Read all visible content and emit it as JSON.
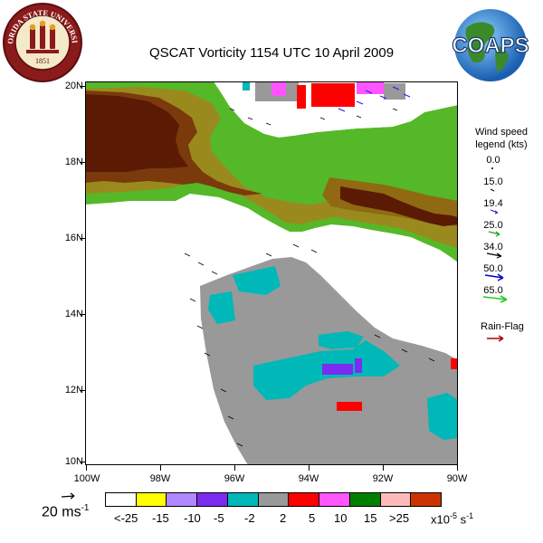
{
  "title": "QSCAT Vorticity 1154 UTC 10 April 2009",
  "logos": {
    "fsu_text": "FLORIDA STATE UNIVERSITY",
    "fsu_year": "1851",
    "coaps_text": "COAPS"
  },
  "map": {
    "lat_labels": [
      "20N",
      "18N",
      "16N",
      "14N",
      "12N",
      "10N"
    ],
    "lon_labels": [
      "100W",
      "98W",
      "96W",
      "94W",
      "92W",
      "90W"
    ]
  },
  "wind_legend": {
    "title_line1": "Wind speed",
    "title_line2": "legend (kts)",
    "entries": [
      {
        "value": "0.0",
        "color": "#000000"
      },
      {
        "value": "15.0",
        "color": "#000000"
      },
      {
        "value": "19.4",
        "color": "#1a1aff"
      },
      {
        "value": "25.0",
        "color": "#1aaa1a"
      },
      {
        "value": "34.0",
        "color": "#000000"
      },
      {
        "value": "50.0",
        "color": "#0000cc"
      },
      {
        "value": "65.0",
        "color": "#22cc22"
      }
    ],
    "rain_flag_label": "Rain-Flag",
    "rain_flag_color": "#aa0000"
  },
  "scale": {
    "reference_label": "20 ms",
    "reference_exponent": "-1",
    "colors": [
      "#ffffff",
      "#ffff00",
      "#b088ff",
      "#7b2cf0",
      "#00b8b8",
      "#999999",
      "#ff0000",
      "#ff55ff",
      "#007f00",
      "#ffbbbb",
      "#cc3300"
    ],
    "tick_labels": [
      "<-25",
      "-15",
      "-10",
      "-5",
      "-2",
      "2",
      "5",
      "10",
      "15",
      ">25"
    ],
    "units_base": "x10",
    "units_exponent": "-5",
    "units_tail": "s",
    "units_tail_exponent": "-1"
  }
}
